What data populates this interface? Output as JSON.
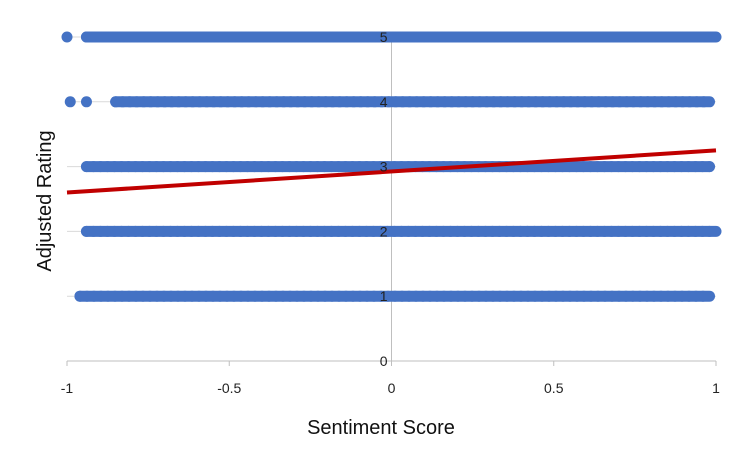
{
  "chart_data": {
    "type": "scatter",
    "title": "",
    "xlabel": "Sentiment Score",
    "ylabel": "Adjusted Rating",
    "xlim": [
      -1,
      1
    ],
    "ylim": [
      0,
      5
    ],
    "x_ticks": [
      -1,
      -0.5,
      0,
      0.5,
      1
    ],
    "y_ticks": [
      0,
      1,
      2,
      3,
      4,
      5
    ],
    "x_tick_labels": [
      "-1",
      "-0.5",
      "0",
      "0.5",
      "1"
    ],
    "y_tick_labels": [
      "0",
      "1",
      "2",
      "3",
      "4",
      "5"
    ],
    "grid": "horizontal",
    "legend": "none",
    "series": [
      {
        "type": "scatter",
        "bands": [
          {
            "y": 5,
            "x_range": [
              -0.94,
              1.0
            ],
            "outliers_x": [
              -1.0
            ]
          },
          {
            "y": 4,
            "x_range": [
              -0.85,
              0.98
            ],
            "outliers_x": [
              -0.99,
              -0.94
            ]
          },
          {
            "y": 3,
            "x_range": [
              -0.94,
              0.98
            ],
            "outliers_x": []
          },
          {
            "y": 2,
            "x_range": [
              -0.94,
              1.0
            ],
            "outliers_x": []
          },
          {
            "y": 1,
            "x_range": [
              -0.96,
              0.98
            ],
            "outliers_x": []
          }
        ]
      },
      {
        "type": "trendline",
        "x": [
          -1,
          1
        ],
        "y": [
          2.6,
          3.25
        ]
      }
    ],
    "colors": {
      "points": "#4472C4",
      "trendline": "#C00000",
      "grid": "#D9D9D9",
      "axis": "#BFBFBF"
    }
  }
}
